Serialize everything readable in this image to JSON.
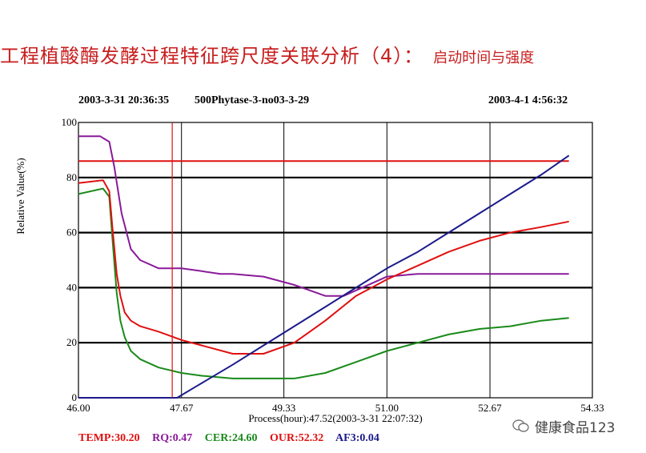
{
  "title": {
    "main": "工程植酸酶发酵过程特征跨尺度关联分析（4）：",
    "sub": "启动时间与强度"
  },
  "header": {
    "left_time": "2003-3-31 20:36:35",
    "batch": "500Phytase-3-no03-3-29",
    "right_time": "2003-4-1 4:56:32"
  },
  "legend": {
    "temp": "TEMP:30.20",
    "rq": "RQ:0.47",
    "cer": "CER:24.60",
    "our": "OUR:52.32",
    "af3": "AF3:0.04"
  },
  "watermark": "健康食品123",
  "chart_data": {
    "type": "line",
    "xlabel": "Process(hour):47.52(2003-3-31 22:07:32)",
    "ylabel": "Relative Value(%)",
    "xlim": [
      46.0,
      54.33
    ],
    "ylim": [
      0,
      100
    ],
    "x_ticks": [
      "46.00",
      "47.67",
      "49.33",
      "51.00",
      "52.67",
      "54.33"
    ],
    "y_ticks": [
      "0",
      "20",
      "40",
      "60",
      "80",
      "100"
    ],
    "cursor_x": 47.52,
    "grid": true,
    "series": [
      {
        "name": "TEMP",
        "color": "#e01010",
        "x": [
          46.0,
          47.0,
          48.0,
          49.0,
          50.0,
          51.0,
          52.0,
          53.0,
          53.95
        ],
        "y": [
          86,
          86,
          86,
          86,
          86,
          86,
          86,
          86,
          86
        ]
      },
      {
        "name": "RQ",
        "color": "#8a1a9a",
        "x": [
          46.0,
          46.35,
          46.5,
          46.58,
          46.7,
          46.85,
          47.0,
          47.3,
          47.67,
          48.0,
          48.3,
          48.5,
          49.0,
          49.5,
          50.0,
          50.3,
          50.6,
          51.0,
          51.5,
          52.0,
          53.0,
          53.95
        ],
        "y": [
          95,
          95,
          93,
          84,
          67,
          54,
          50,
          47,
          47,
          46,
          45,
          45,
          44,
          41,
          37,
          37,
          40,
          44,
          45,
          45,
          45,
          45
        ]
      },
      {
        "name": "CER",
        "color": "#1a8a1a",
        "x": [
          46.0,
          46.4,
          46.5,
          46.55,
          46.62,
          46.68,
          46.75,
          46.85,
          47.0,
          47.3,
          47.67,
          48.0,
          48.5,
          49.0,
          49.5,
          50.0,
          50.5,
          51.0,
          51.5,
          52.0,
          52.5,
          53.0,
          53.5,
          53.95
        ],
        "y": [
          74,
          76,
          73,
          58,
          38,
          28,
          22,
          17,
          14,
          11,
          9,
          8,
          7,
          7,
          7,
          9,
          13,
          17,
          20,
          23,
          25,
          26,
          28,
          29
        ]
      },
      {
        "name": "OUR",
        "color": "#e01010",
        "x": [
          46.0,
          46.4,
          46.5,
          46.55,
          46.62,
          46.68,
          46.75,
          46.85,
          47.0,
          47.3,
          47.67,
          48.0,
          48.5,
          49.0,
          49.5,
          50.0,
          50.5,
          51.0,
          51.5,
          52.0,
          52.5,
          53.0,
          53.5,
          53.95
        ],
        "y": [
          78,
          79,
          75,
          62,
          45,
          37,
          31,
          28,
          26,
          24,
          21,
          19,
          16,
          16,
          20,
          28,
          37,
          43,
          48,
          53,
          57,
          60,
          62,
          64
        ]
      },
      {
        "name": "AF3",
        "color": "#1a1a8a",
        "x": [
          46.0,
          47.6,
          47.9,
          48.5,
          49.0,
          49.5,
          50.0,
          50.5,
          51.0,
          51.5,
          52.0,
          52.5,
          53.0,
          53.5,
          53.95
        ],
        "y": [
          0,
          0,
          4,
          12,
          19,
          26,
          33,
          40,
          47,
          53,
          60,
          67,
          74,
          81,
          88
        ]
      }
    ]
  }
}
